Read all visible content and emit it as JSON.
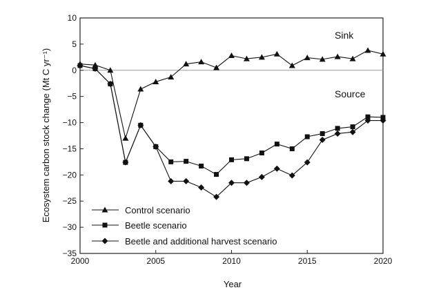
{
  "chart_data": {
    "type": "line",
    "title": "",
    "xlabel": "Year",
    "ylabel": "Ecosystem carbon stock change (Mt C yr⁻¹)",
    "xlim": [
      2000,
      2020
    ],
    "ylim": [
      -35,
      10
    ],
    "xticks": [
      2000,
      2005,
      2010,
      2015,
      2020
    ],
    "yticks": [
      10,
      5,
      0,
      -5,
      -10,
      -15,
      -20,
      -25,
      -30,
      -35
    ],
    "grid": false,
    "legend_position": "bottom-left",
    "annotations": [
      "Sink",
      "Source"
    ],
    "x": [
      2000,
      2001,
      2002,
      2003,
      2004,
      2005,
      2006,
      2007,
      2008,
      2009,
      2010,
      2011,
      2012,
      2013,
      2014,
      2015,
      2016,
      2017,
      2018,
      2019,
      2020
    ],
    "series": [
      {
        "name": "Control scenario",
        "marker": "triangle",
        "values": [
          1.2,
          1.0,
          0.0,
          -13.0,
          -3.6,
          -2.2,
          -1.3,
          1.2,
          1.6,
          0.5,
          2.8,
          2.2,
          2.5,
          3.1,
          0.9,
          2.4,
          2.1,
          2.6,
          2.2,
          3.8,
          3.1
        ]
      },
      {
        "name": "Beetle scenario",
        "marker": "square",
        "values": [
          0.9,
          0.3,
          -2.6,
          -17.6,
          -10.5,
          -14.6,
          -17.5,
          -17.4,
          -18.3,
          -19.9,
          -17.1,
          -16.9,
          -15.8,
          -14.1,
          -15.0,
          -12.7,
          -12.1,
          -11.1,
          -10.8,
          -8.9,
          -9.0
        ]
      },
      {
        "name": "Beetle and additional harvest scenario",
        "marker": "diamond",
        "values": [
          0.9,
          0.3,
          -2.6,
          -17.6,
          -10.5,
          -14.6,
          -21.2,
          -21.2,
          -22.4,
          -24.2,
          -21.5,
          -21.5,
          -20.4,
          -18.8,
          -20.1,
          -17.6,
          -13.3,
          -12.1,
          -11.8,
          -9.6,
          -9.6
        ]
      }
    ]
  }
}
